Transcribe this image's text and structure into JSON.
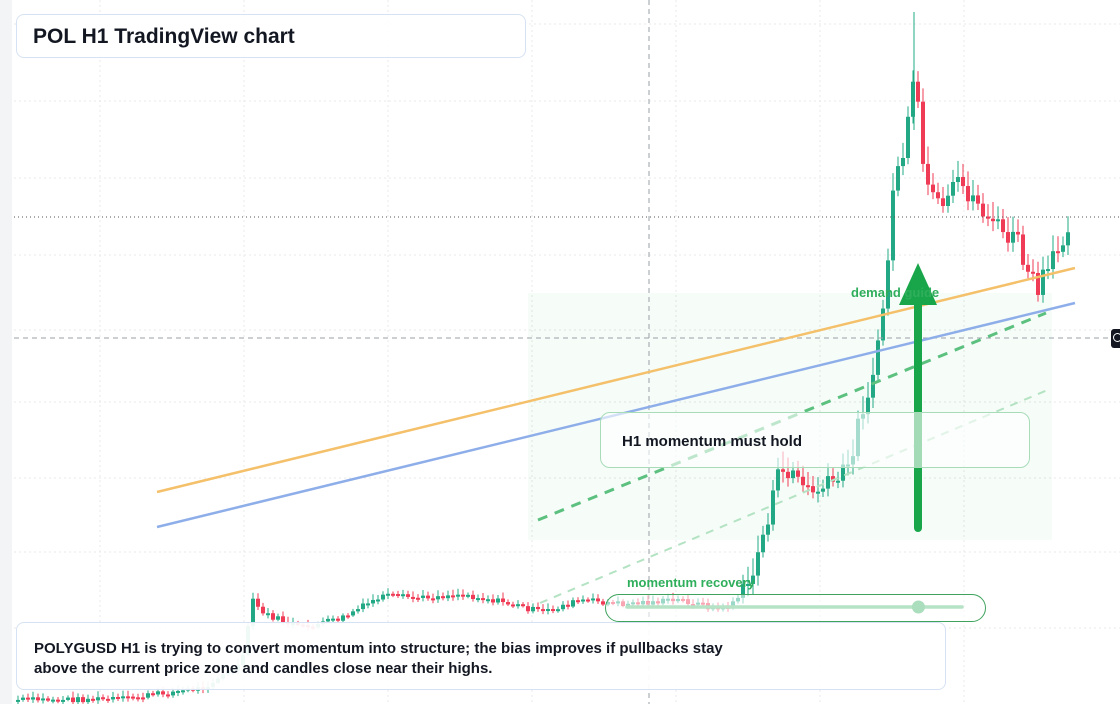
{
  "title": "POL H1 TradingView chart",
  "info_text": "POLYGUSD H1 is trying to convert momentum into structure; the bias improves if pullbacks stay above the current price zone and candles close near their highs.",
  "callout_text": "H1 momentum must hold",
  "demand_label": "demand guide",
  "momentum_label": "momentum recovery",
  "slider": {
    "level": 0.87
  },
  "colors": {
    "up": "#22a884",
    "down": "#ef3b55",
    "orange_line": "#f4c06a",
    "blue_line": "#8eaee9",
    "green_accent": "#19a64a",
    "grid": "#e8e8e8"
  },
  "icons": {
    "right_scale": "target-icon"
  }
}
